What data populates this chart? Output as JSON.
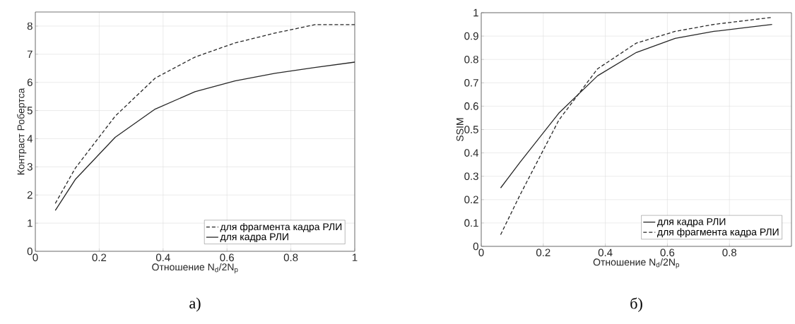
{
  "chart_data": [
    {
      "type": "line",
      "ylabel": "Контраст Робертса",
      "xlabel": "Отношение N$_{d}$/2N$_{p}$",
      "annotations": [
        "а)"
      ],
      "x": [
        0.0625,
        0.125,
        0.25,
        0.375,
        0.5,
        0.625,
        0.75,
        0.875,
        1.0
      ],
      "series": [
        {
          "name": "для фрагмента кадра РЛИ",
          "color": "#262626",
          "line_style": "dashed",
          "values": [
            1.7,
            2.95,
            4.8,
            6.15,
            6.9,
            7.4,
            7.75,
            8.05,
            8.05
          ]
        },
        {
          "name": "для кадра РЛИ",
          "color": "#262626",
          "line_style": "solid",
          "values": [
            1.45,
            2.55,
            4.05,
            5.05,
            5.67,
            6.05,
            6.32,
            6.53,
            6.72
          ]
        }
      ],
      "xlim": [
        0,
        1
      ],
      "ylim": [
        0,
        8.5
      ],
      "xticks": [
        0,
        0.2,
        0.4,
        0.6,
        0.8,
        1
      ],
      "yticks": [
        0,
        1,
        2,
        3,
        4,
        5,
        6,
        7,
        8
      ],
      "grid": true,
      "legend": "bottom right"
    },
    {
      "type": "line",
      "ylabel": "SSIM",
      "xlabel": "Отношение N$_{d}$/2N$_{p}$",
      "annotations": [
        "б)"
      ],
      "x": [
        0.0625,
        0.125,
        0.25,
        0.375,
        0.5,
        0.625,
        0.75,
        0.875,
        0.9375
      ],
      "series": [
        {
          "name": "для кадра РЛИ",
          "color": "#262626",
          "line_style": "solid",
          "values": [
            0.25,
            0.36,
            0.57,
            0.73,
            0.83,
            0.89,
            0.92,
            0.94,
            0.95
          ]
        },
        {
          "name": "для фрагмента кадра РЛИ",
          "color": "#262626",
          "line_style": "dashed",
          "values": [
            0.05,
            0.22,
            0.54,
            0.76,
            0.87,
            0.92,
            0.95,
            0.97,
            0.98
          ]
        }
      ],
      "xlim": [
        0,
        1
      ],
      "ylim": [
        0,
        1
      ],
      "xticks": [
        0,
        0.2,
        0.4,
        0.6,
        0.8
      ],
      "yticks": [
        0,
        0.1,
        0.2,
        0.3,
        0.4,
        0.5,
        0.6,
        0.7,
        0.8,
        0.9,
        1
      ],
      "grid": true,
      "legend": "bottom right"
    }
  ]
}
